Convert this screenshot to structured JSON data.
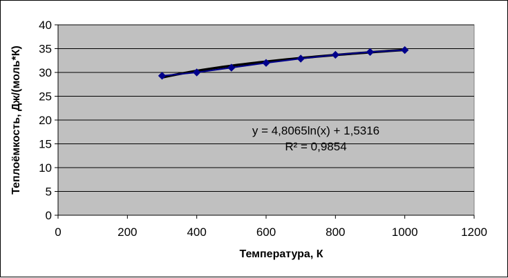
{
  "chart_data": {
    "type": "scatter",
    "title": "",
    "xlabel": "Температура, К",
    "ylabel": "Теплоёмкость, Дж/(моль*К)",
    "xlim": [
      0,
      1200
    ],
    "ylim": [
      0,
      40
    ],
    "x_ticks": [
      "0",
      "200",
      "400",
      "600",
      "800",
      "1000",
      "1200"
    ],
    "y_ticks": [
      "0",
      "5",
      "10",
      "15",
      "20",
      "25",
      "30",
      "35",
      "40"
    ],
    "grid": "horizontal",
    "legend": "none",
    "series": [
      {
        "x": [
          300,
          400,
          500,
          600,
          700,
          800,
          900,
          1000
        ],
        "y": [
          29.3,
          30.0,
          31.0,
          32.0,
          32.9,
          33.7,
          34.3,
          34.7
        ],
        "color": "#00008b",
        "marker": "diamond"
      }
    ],
    "trendline": {
      "type": "logarithmic",
      "a": 4.8065,
      "b": 1.5316,
      "color": "#000000",
      "equation_label": "y = 4,8065ln(x) + 1,5316",
      "r2_label": "R² = 0,9854"
    },
    "colors": {
      "plot_area": "#c0c0c0",
      "gridline": "#000000",
      "series": "#00008b"
    }
  }
}
